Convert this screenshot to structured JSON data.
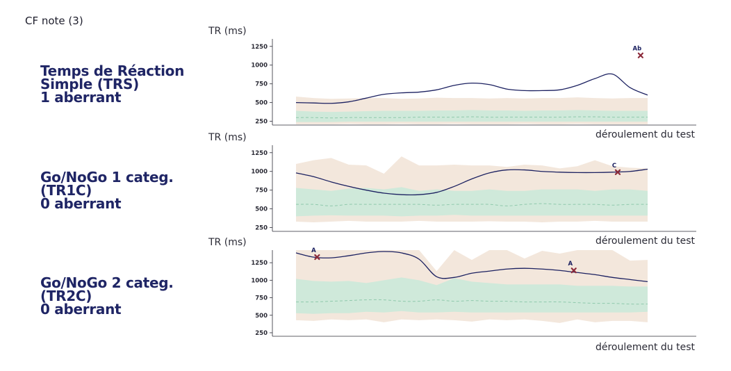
{
  "header": {
    "note": "CF note (3)"
  },
  "colors": {
    "line": "#1b2060",
    "outer_band": "#f3e7dc",
    "inner_band": "#cfe9da",
    "median_dash": "#8fc9ac",
    "marker": "#8b2a3a",
    "title": "#1f2565",
    "axis": "#2a2a35"
  },
  "chart_data": [
    {
      "type": "line",
      "title_lines": [
        "Temps de Réaction",
        "Simple (TRS)",
        "1 aberrant"
      ],
      "ylabel": "TR (ms)",
      "xlabel": "déroulement du test",
      "ylim": [
        200,
        1350
      ],
      "yticks": [
        250,
        500,
        750,
        1000,
        1250
      ],
      "x": [
        0,
        1,
        2,
        3,
        4,
        5,
        6,
        7,
        8,
        9,
        10,
        11,
        12,
        13,
        14,
        15,
        16,
        17,
        18,
        19,
        20
      ],
      "series": [
        {
          "values": [
            500,
            495,
            490,
            510,
            560,
            610,
            630,
            640,
            670,
            730,
            760,
            740,
            680,
            660,
            660,
            670,
            730,
            820,
            880,
            700,
            600
          ]
        }
      ],
      "band_outer": {
        "low": [
          210,
          210,
          210,
          215,
          210,
          210,
          215,
          210,
          210,
          215,
          210,
          210,
          210,
          215,
          210,
          210,
          215,
          210,
          210,
          210,
          210
        ],
        "high": [
          580,
          560,
          550,
          555,
          560,
          560,
          550,
          555,
          565,
          560,
          560,
          555,
          560,
          555,
          560,
          560,
          570,
          560,
          555,
          560,
          560
        ]
      },
      "band_inner": {
        "low": [
          240,
          240,
          240,
          245,
          245,
          245,
          245,
          245,
          245,
          245,
          245,
          245,
          245,
          245,
          245,
          245,
          245,
          245,
          245,
          245,
          245
        ],
        "high": [
          390,
          380,
          375,
          380,
          385,
          390,
          390,
          390,
          395,
          395,
          400,
          395,
          395,
          390,
          395,
          395,
          400,
          395,
          390,
          390,
          390
        ]
      },
      "median": [
        300,
        300,
        295,
        300,
        300,
        300,
        300,
        305,
        305,
        305,
        310,
        305,
        305,
        305,
        305,
        305,
        310,
        310,
        305,
        305,
        305
      ],
      "markers": [
        {
          "x": 19.6,
          "y": 1130,
          "label": "Ab"
        }
      ]
    },
    {
      "type": "line",
      "title_lines": [
        "Go/NoGo 1 categ.",
        "(TR1C)",
        "0 aberrant"
      ],
      "ylabel": "TR (ms)",
      "xlabel": "déroulement du test",
      "ylim": [
        200,
        1350
      ],
      "yticks": [
        250,
        500,
        750,
        1000,
        1250
      ],
      "x": [
        0,
        1,
        2,
        3,
        4,
        5,
        6,
        7,
        8,
        9,
        10,
        11,
        12,
        13,
        14,
        15,
        16,
        17,
        18,
        19,
        20
      ],
      "series": [
        {
          "values": [
            980,
            930,
            860,
            800,
            750,
            710,
            690,
            690,
            720,
            800,
            900,
            980,
            1020,
            1020,
            1000,
            990,
            985,
            985,
            990,
            1000,
            1030
          ]
        }
      ],
      "band_outer": {
        "low": [
          330,
          320,
          330,
          340,
          330,
          330,
          330,
          340,
          330,
          330,
          330,
          335,
          330,
          330,
          320,
          330,
          330,
          340,
          330,
          330,
          330
        ],
        "high": [
          1100,
          1150,
          1180,
          1090,
          1080,
          970,
          1200,
          1080,
          1080,
          1090,
          1080,
          1080,
          1060,
          1090,
          1080,
          1040,
          1070,
          1150,
          1070,
          1050,
          1040
        ]
      },
      "band_inner": {
        "low": [
          400,
          410,
          415,
          410,
          410,
          410,
          400,
          410,
          410,
          420,
          410,
          410,
          410,
          410,
          410,
          410,
          410,
          410,
          410,
          410,
          410
        ],
        "high": [
          780,
          760,
          740,
          770,
          780,
          760,
          790,
          740,
          760,
          740,
          740,
          760,
          740,
          740,
          760,
          760,
          760,
          740,
          760,
          760,
          740
        ]
      },
      "median": [
        560,
        560,
        540,
        560,
        560,
        560,
        560,
        560,
        550,
        560,
        560,
        560,
        540,
        560,
        570,
        560,
        560,
        560,
        550,
        560,
        560
      ],
      "markers": [
        {
          "x": 18.3,
          "y": 990,
          "label": "C"
        }
      ]
    },
    {
      "type": "line",
      "title_lines": [
        "Go/NoGo 2 categ.",
        "(TR2C)",
        "0 aberrant"
      ],
      "ylabel": "TR (ms)",
      "xlabel": "déroulement du test",
      "ylim": [
        200,
        1430
      ],
      "yticks": [
        250,
        500,
        750,
        1000,
        1250
      ],
      "x": [
        0,
        1,
        2,
        3,
        4,
        5,
        6,
        7,
        8,
        9,
        10,
        11,
        12,
        13,
        14,
        15,
        16,
        17,
        18,
        19,
        20
      ],
      "series": [
        {
          "values": [
            1390,
            1330,
            1320,
            1350,
            1390,
            1410,
            1390,
            1300,
            1050,
            1040,
            1100,
            1130,
            1160,
            1170,
            1160,
            1140,
            1110,
            1080,
            1040,
            1010,
            980
          ]
        }
      ],
      "band_outer": {
        "low": [
          430,
          420,
          440,
          430,
          440,
          400,
          440,
          430,
          440,
          430,
          410,
          440,
          430,
          440,
          420,
          390,
          440,
          400,
          420,
          420,
          400
        ],
        "high": [
          1430,
          1430,
          1430,
          1430,
          1430,
          1430,
          1430,
          1430,
          1130,
          1430,
          1290,
          1430,
          1430,
          1310,
          1420,
          1380,
          1430,
          1430,
          1430,
          1280,
          1290
        ]
      },
      "band_inner": {
        "low": [
          530,
          520,
          530,
          530,
          550,
          540,
          560,
          540,
          540,
          550,
          540,
          540,
          540,
          540,
          540,
          540,
          540,
          540,
          540,
          540,
          550
        ],
        "high": [
          1020,
          990,
          980,
          990,
          960,
          1000,
          1040,
          1000,
          930,
          1030,
          980,
          960,
          940,
          940,
          940,
          940,
          920,
          920,
          920,
          910,
          910
        ]
      },
      "median": [
        690,
        690,
        700,
        710,
        720,
        720,
        700,
        700,
        720,
        700,
        710,
        700,
        700,
        690,
        690,
        690,
        680,
        670,
        670,
        660,
        660
      ],
      "markers": [
        {
          "x": 1.2,
          "y": 1330,
          "label": "A"
        },
        {
          "x": 15.8,
          "y": 1140,
          "label": "A"
        }
      ]
    }
  ]
}
